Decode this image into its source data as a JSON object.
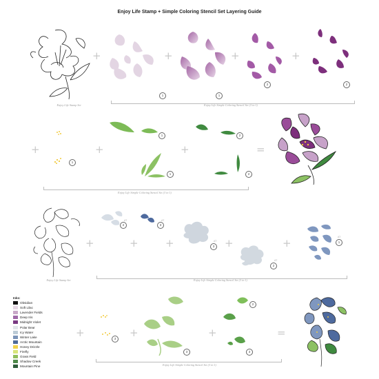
{
  "title": "Enjoy Life Stamp + Simple Coloring Stencil Set Layering Guide",
  "row1": {
    "caption_stamp": "Enjoy Life Stamp Set",
    "caption_stencil": "Enjoy Life Simple Coloring Stencil Set (3 in 1)",
    "steps": [
      "1",
      "1",
      "2",
      "2"
    ]
  },
  "row2": {
    "caption_stencil": "Enjoy Life Simple Coloring Stencil Set (3 in 1)",
    "steps": [
      "1",
      "1",
      "2",
      "2",
      "1"
    ]
  },
  "row3": {
    "caption_stamp": "Enjoy Life Stamp Set",
    "caption_stencil": "Enjoy Life Simple Coloring Stencil Set (3 in 1)",
    "steps": [
      "2",
      "3",
      "3",
      "2",
      "1"
    ],
    "tags": [
      "AT",
      "AT",
      "AT",
      "AT",
      "AT"
    ]
  },
  "row4": {
    "caption_stencil": "Enjoy Life Simple Coloring Stencil Set (3 in 1)",
    "steps": [
      "3",
      "3",
      "2",
      "3"
    ]
  },
  "inks": {
    "heading": "Inks:",
    "items": [
      {
        "name": "Obsidian",
        "color": "#111111"
      },
      {
        "name": "Soft Lilac",
        "color": "#e6d8e4"
      },
      {
        "name": "Lavender Fields",
        "color": "#c8a8c8"
      },
      {
        "name": "Deep Iris",
        "color": "#a06aa8"
      },
      {
        "name": "Midnight Violet",
        "color": "#7a3a82"
      },
      {
        "name": "Polar Bear",
        "color": "#e2e6ea"
      },
      {
        "name": "Icy Water",
        "color": "#bccbd6"
      },
      {
        "name": "Winter Lake",
        "color": "#7c94b8"
      },
      {
        "name": "Arctic Mountain",
        "color": "#4f6a9a"
      },
      {
        "name": "Honey Drizzle",
        "color": "#f1d24a"
      },
      {
        "name": "Firefly",
        "color": "#d7e47a"
      },
      {
        "name": "Grass Field",
        "color": "#8fbe5c"
      },
      {
        "name": "Shadow Creek",
        "color": "#4f8a4a"
      },
      {
        "name": "Mountain Pine",
        "color": "#2f5c3a"
      }
    ]
  },
  "operators": {
    "plus": "+",
    "equals": "="
  },
  "colors": {
    "lilac_light": "#e2d4e2",
    "lilac_mid": "#c7a2c9",
    "violet": "#9a4c99",
    "violet_dark": "#7d2f7c",
    "green_light": "#8cc163",
    "green_dark": "#3f8a3f",
    "gray_blue": "#cfd6de",
    "blue_mid": "#7f97bf",
    "blue_dark": "#4e6a9e",
    "yellow": "#f0c93a"
  }
}
